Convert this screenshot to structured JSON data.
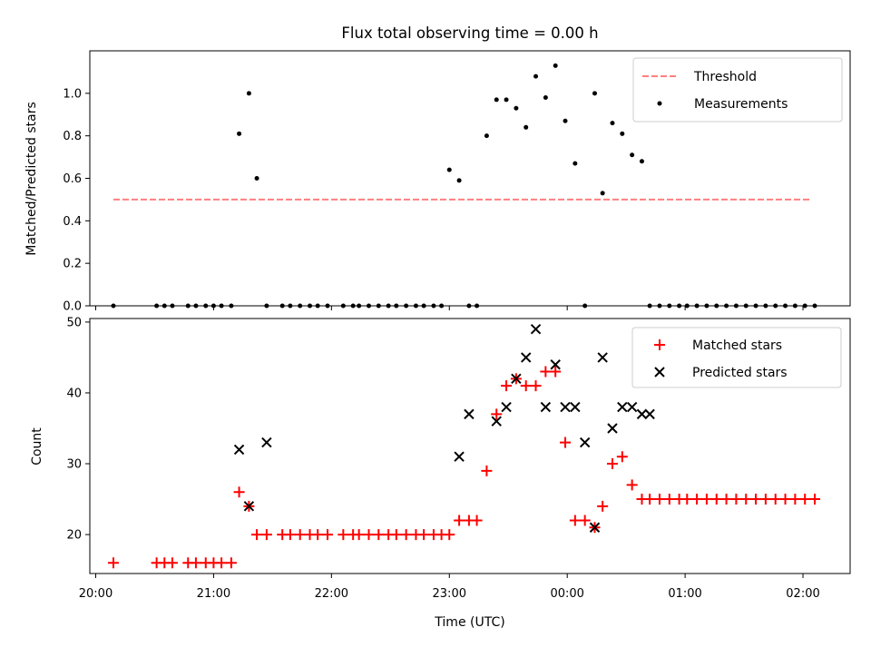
{
  "title": "Flux total observing time = 0.00 h",
  "colors": {
    "threshold": "#ff7f7f",
    "matched": "#ff0000",
    "predicted": "#000000",
    "measure": "#000000"
  },
  "chart_data": [
    {
      "type": "scatter",
      "ylabel": "Matched/Predicted stars",
      "ylim": [
        0,
        1.2
      ],
      "yticks": [
        "0.0",
        "0.2",
        "0.4",
        "0.6",
        "0.8",
        "1.0"
      ],
      "threshold_x": [
        "20:09",
        "02:04"
      ],
      "legend_position": "top-right",
      "legend": [
        "Threshold",
        "Measurements"
      ],
      "series": [
        {
          "name": "Threshold",
          "kind": "dashed-line",
          "values": [
            0.5,
            0.5
          ]
        },
        {
          "name": "Measurements",
          "kind": "points",
          "x": [
            "20:09",
            "20:31",
            "20:35",
            "20:39",
            "20:47",
            "20:51",
            "20:56",
            "21:00",
            "21:04",
            "21:09",
            "21:13",
            "21:18",
            "21:22",
            "21:27",
            "21:35",
            "21:39",
            "21:44",
            "21:49",
            "21:53",
            "21:58",
            "22:06",
            "22:11",
            "22:14",
            "22:19",
            "22:24",
            "22:29",
            "22:33",
            "22:38",
            "22:43",
            "22:47",
            "22:52",
            "22:56",
            "23:00",
            "23:05",
            "23:10",
            "23:14",
            "23:19",
            "23:24",
            "23:29",
            "23:34",
            "23:39",
            "23:44",
            "23:49",
            "23:54",
            "23:59",
            "00:04",
            "00:09",
            "00:14",
            "00:18",
            "00:23",
            "00:28",
            "00:33",
            "00:38",
            "00:42",
            "00:47",
            "00:52",
            "00:57",
            "01:01",
            "01:06",
            "01:11",
            "01:16",
            "01:21",
            "01:26",
            "01:31",
            "01:36",
            "01:41",
            "01:46",
            "01:51",
            "01:56",
            "02:01",
            "02:06"
          ],
          "y": [
            0,
            0,
            0,
            0,
            0,
            0,
            0,
            0,
            0,
            0,
            0.81,
            1.0,
            0.6,
            0,
            0,
            0,
            0,
            0,
            0,
            0,
            0,
            0,
            0,
            0,
            0,
            0,
            0,
            0,
            0,
            0,
            0,
            0,
            0.64,
            0.59,
            0,
            0,
            0.8,
            0.97,
            0.97,
            0.93,
            0.84,
            1.08,
            0.98,
            1.13,
            0.87,
            0.67,
            0,
            1.0,
            0.53,
            0.86,
            0.81,
            0.71,
            0.68,
            0,
            0,
            0,
            0,
            0,
            0,
            0,
            0,
            0,
            0,
            0,
            0,
            0,
            0,
            0,
            0,
            0,
            0
          ]
        }
      ]
    },
    {
      "type": "scatter",
      "ylabel": "Count",
      "xlabel": "Time (UTC)",
      "ylim": [
        14.5,
        50.5
      ],
      "xlim": [
        "19:57",
        "02:24"
      ],
      "yticks": [
        "20",
        "30",
        "40",
        "50"
      ],
      "xticks": [
        "20:00",
        "21:00",
        "22:00",
        "23:00",
        "00:00",
        "01:00",
        "02:00"
      ],
      "legend_position": "top-right",
      "legend": [
        "Matched stars",
        "Predicted stars"
      ],
      "series": [
        {
          "name": "Matched stars",
          "marker": "plus",
          "x": [
            "20:09",
            "20:31",
            "20:35",
            "20:39",
            "20:47",
            "20:51",
            "20:56",
            "21:00",
            "21:04",
            "21:09",
            "21:13",
            "21:18",
            "21:22",
            "21:27",
            "21:35",
            "21:39",
            "21:44",
            "21:49",
            "21:53",
            "21:58",
            "22:06",
            "22:11",
            "22:14",
            "22:19",
            "22:24",
            "22:29",
            "22:33",
            "22:38",
            "22:43",
            "22:47",
            "22:52",
            "22:56",
            "23:00",
            "23:05",
            "23:10",
            "23:14",
            "23:19",
            "23:24",
            "23:29",
            "23:34",
            "23:39",
            "23:44",
            "23:49",
            "23:54",
            "23:59",
            "00:04",
            "00:09",
            "00:14",
            "00:18",
            "00:23",
            "00:28",
            "00:33",
            "00:38",
            "00:42",
            "00:47",
            "00:52",
            "00:57",
            "01:01",
            "01:06",
            "01:11",
            "01:16",
            "01:21",
            "01:26",
            "01:31",
            "01:36",
            "01:41",
            "01:46",
            "01:51",
            "01:56",
            "02:01",
            "02:06"
          ],
          "y": [
            16,
            16,
            16,
            16,
            16,
            16,
            16,
            16,
            16,
            16,
            26,
            24,
            20,
            20,
            20,
            20,
            20,
            20,
            20,
            20,
            20,
            20,
            20,
            20,
            20,
            20,
            20,
            20,
            20,
            20,
            20,
            20,
            20,
            22,
            22,
            22,
            29,
            37,
            41,
            42,
            41,
            41,
            43,
            43,
            33,
            22,
            22,
            21,
            24,
            30,
            31,
            27,
            25,
            25,
            25,
            25,
            25,
            25,
            25,
            25,
            25,
            25,
            25,
            25,
            25,
            25,
            25,
            25,
            25,
            25,
            25
          ]
        },
        {
          "name": "Predicted stars",
          "marker": "x",
          "x": [
            "21:13",
            "21:18",
            "21:27",
            "23:05",
            "23:10",
            "23:24",
            "23:29",
            "23:34",
            "23:39",
            "23:44",
            "23:49",
            "23:54",
            "23:59",
            "00:04",
            "00:09",
            "00:14",
            "00:18",
            "00:23",
            "00:28",
            "00:33",
            "00:38",
            "00:42"
          ],
          "y": [
            32,
            24,
            33,
            31,
            37,
            36,
            38,
            42,
            45,
            49,
            38,
            44,
            38,
            38,
            33,
            21,
            45,
            35,
            38,
            38,
            37,
            37
          ]
        }
      ]
    }
  ]
}
